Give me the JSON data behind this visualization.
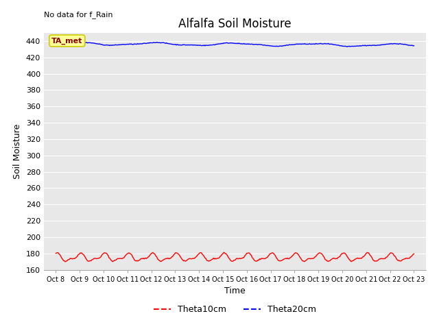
{
  "title": "Alfalfa Soil Moisture",
  "ylabel": "Soil Moisture",
  "xlabel": "Time",
  "top_left_text": "No data for f_Rain",
  "annotation_text": "TA_met",
  "ylim": [
    160,
    450
  ],
  "yticks": [
    160,
    180,
    200,
    220,
    240,
    260,
    280,
    300,
    320,
    340,
    360,
    380,
    400,
    420,
    440
  ],
  "xtick_labels": [
    "Oct 8",
    "Oct 9",
    "Oct 10",
    "Oct 11",
    "Oct 12",
    "Oct 13",
    "Oct 14",
    "Oct 15",
    "Oct 16",
    "Oct 17",
    "Oct 18",
    "Oct 19",
    "Oct 20",
    "Oct 21",
    "Oct 22",
    "Oct 23"
  ],
  "theta10_color": "#ff0000",
  "theta20_color": "#0000ff",
  "theta10_mean": 175,
  "theta20_mean": 437,
  "n_points": 500,
  "background_color": "#e8e8e8",
  "legend_entries": [
    "Theta10cm",
    "Theta20cm"
  ],
  "title_fontsize": 12,
  "axis_label_fontsize": 9,
  "tick_fontsize": 8,
  "figsize": [
    6.4,
    4.8
  ],
  "dpi": 100
}
